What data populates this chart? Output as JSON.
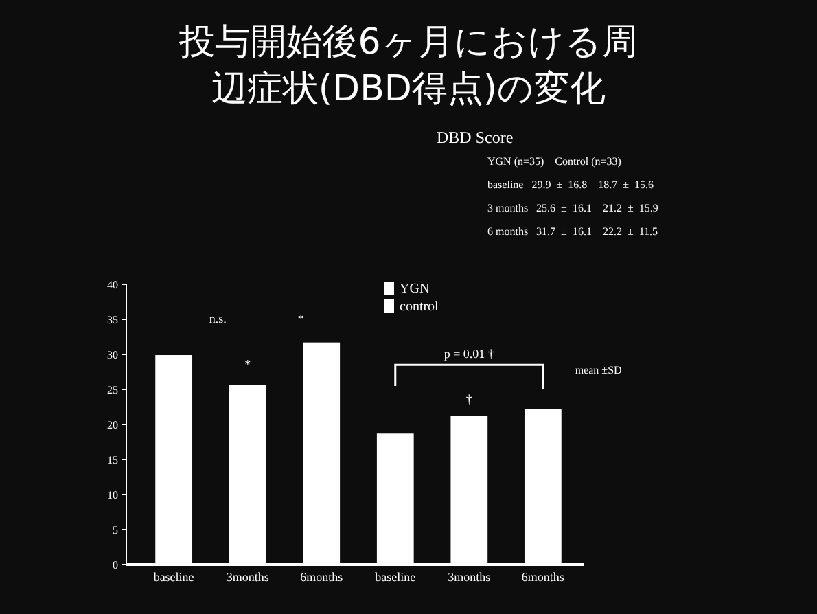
{
  "chart_data": {
    "type": "bar",
    "title": "投与開始後6ヶ月における周辺症状(DBD得点)の変化",
    "categories": [
      "baseline",
      "3months",
      "6months",
      "baseline",
      "3months",
      "6months"
    ],
    "series": [
      {
        "name": "YGN",
        "color": "#ffffff",
        "values": [
          29.9,
          25.6,
          31.7,
          null,
          null,
          null
        ]
      },
      {
        "name": "control",
        "color": "#ffffff",
        "values": [
          null,
          null,
          null,
          18.7,
          21.2,
          22.2
        ]
      }
    ],
    "ylim": [
      0,
      40
    ],
    "yticks": [
      0,
      5,
      10,
      15,
      20,
      25,
      30,
      35,
      40
    ],
    "grid": false,
    "legend": "top",
    "annotations": [
      "n.s.",
      "*",
      "*",
      "†",
      "p = 0.01 †",
      "mean ±SD",
      "DBD Score",
      "YGN (n=35)    Control (n=33)",
      "baseline   29.9  ±  16.8    18.7  ±  15.6",
      "3 months   25.6  ±  16.1    21.2  ±  15.9",
      "6 months   31.7  ±  16.1    22.2  ±  11.5"
    ]
  }
}
